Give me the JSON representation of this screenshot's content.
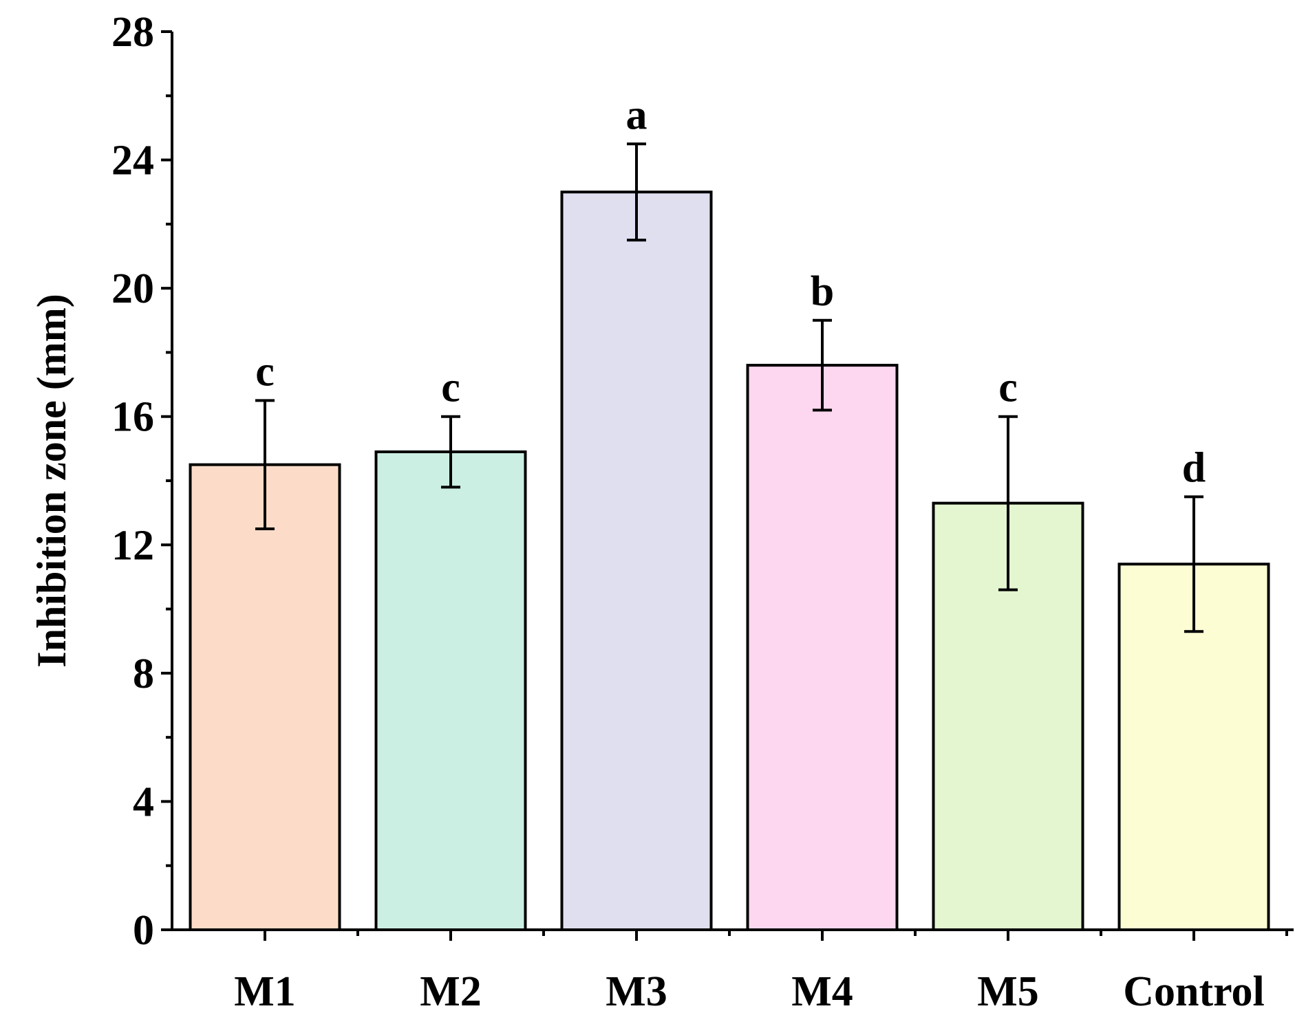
{
  "chart_data": {
    "type": "bar",
    "title": "",
    "xlabel": "",
    "ylabel": "Inhibition zone (mm)",
    "ylim": [
      0,
      28
    ],
    "yticks": [
      0,
      4,
      8,
      12,
      16,
      20,
      24,
      28
    ],
    "grid": false,
    "categories": [
      "M1",
      "M2",
      "M3",
      "M4",
      "M5",
      "Control"
    ],
    "values": [
      14.5,
      14.9,
      23.0,
      17.6,
      13.3,
      11.4
    ],
    "errors": [
      2.0,
      1.1,
      1.5,
      1.4,
      2.7,
      2.1
    ],
    "significance_labels": [
      "c",
      "c",
      "a",
      "b",
      "c",
      "d"
    ],
    "colors": [
      "#fcdcc8",
      "#ccefe4",
      "#e0dff0",
      "#fdd7ef",
      "#e3f6cf",
      "#fdfdd4"
    ]
  }
}
